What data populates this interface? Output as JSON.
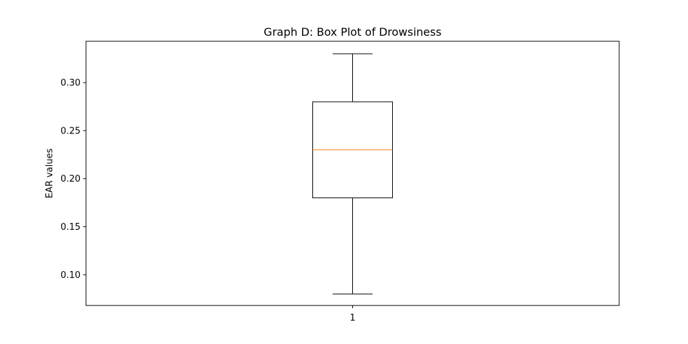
{
  "chart_data": {
    "type": "box",
    "title": "Graph D: Box Plot of Drowsiness",
    "xlabel": "",
    "ylabel": "EAR values",
    "ylim": [
      0.068,
      0.343
    ],
    "x_ticks": [
      "1"
    ],
    "y_ticks": [
      "0.10",
      "0.15",
      "0.20",
      "0.25",
      "0.30"
    ],
    "y_tick_values": [
      0.1,
      0.15,
      0.2,
      0.25,
      0.3
    ],
    "grid": false,
    "legend": "none",
    "boxes": [
      {
        "label": "1",
        "whisker_low": 0.08,
        "q1": 0.18,
        "median": 0.23,
        "q3": 0.28,
        "whisker_high": 0.33
      }
    ],
    "colors": {
      "box": "#000000",
      "median": "#ff7f0e",
      "axes": "#000000"
    }
  }
}
